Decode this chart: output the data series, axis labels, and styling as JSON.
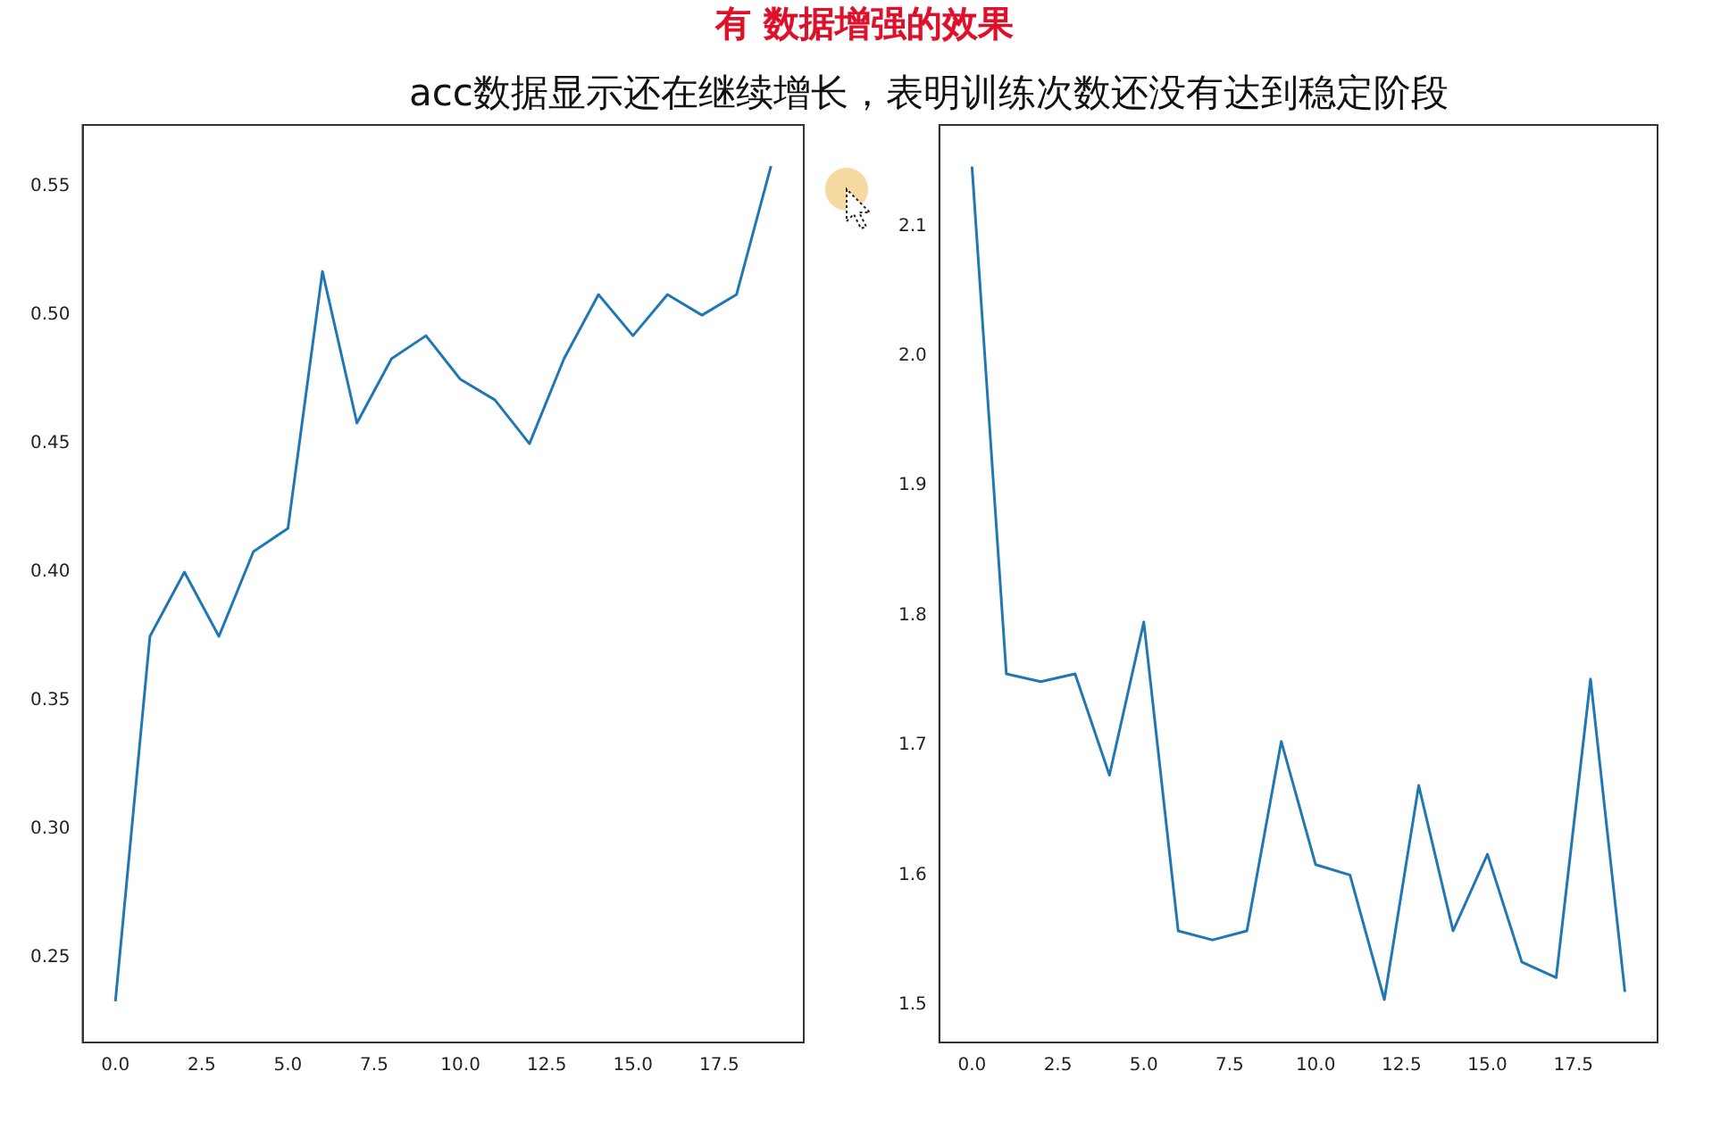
{
  "chart_data": [
    {
      "type": "line",
      "title": "有 数据增强的效果",
      "subtitle": "acc数据显示还在继续增长，表明训练次数还没有达到稳定阶段",
      "x": [
        0,
        1,
        2,
        3,
        4,
        5,
        6,
        7,
        8,
        9,
        10,
        11,
        12,
        13,
        14,
        15,
        16,
        17,
        18,
        19
      ],
      "series": [
        {
          "color": "#1f77b4",
          "values": [
            0.233,
            0.375,
            0.4,
            0.375,
            0.408,
            0.417,
            0.517,
            0.458,
            0.483,
            0.492,
            0.475,
            0.467,
            0.45,
            0.483,
            0.508,
            0.492,
            0.508,
            0.5,
            0.508,
            0.558
          ]
        }
      ],
      "xlim": [
        -0.95,
        19.95
      ],
      "xticks": [
        {
          "value": 0,
          "label": "0.0"
        },
        {
          "value": 2.5,
          "label": "2.5"
        },
        {
          "value": 5,
          "label": "5.0"
        },
        {
          "value": 7.5,
          "label": "7.5"
        },
        {
          "value": 10,
          "label": "10.0"
        },
        {
          "value": 12.5,
          "label": "12.5"
        },
        {
          "value": 15,
          "label": "15.0"
        },
        {
          "value": 17.5,
          "label": "17.5"
        }
      ],
      "ylim": [
        0.217,
        0.574
      ],
      "yticks": [
        0.25,
        {
          "value": 0.3,
          "label": "0.30"
        },
        0.35,
        {
          "value": 0.4,
          "label": "0.40"
        },
        0.45,
        {
          "value": 0.5,
          "label": "0.50"
        },
        0.55
      ],
      "grid": false,
      "legend": false,
      "marker": "none",
      "line_style": "solid"
    },
    {
      "type": "line",
      "x": [
        0,
        1,
        2,
        3,
        4,
        5,
        6,
        7,
        8,
        9,
        10,
        11,
        12,
        13,
        14,
        15,
        16,
        17,
        18,
        19
      ],
      "series": [
        {
          "color": "#1f77b4",
          "values": [
            2.146,
            1.755,
            1.749,
            1.755,
            1.677,
            1.795,
            1.557,
            1.55,
            1.557,
            1.703,
            1.608,
            1.6,
            1.504,
            1.669,
            1.557,
            1.616,
            1.533,
            1.521,
            1.751,
            1.51
          ]
        }
      ],
      "xlim": [
        -0.95,
        19.95
      ],
      "xticks": [
        {
          "value": 0,
          "label": "0.0"
        },
        {
          "value": 2.5,
          "label": "2.5"
        },
        {
          "value": 5,
          "label": "5.0"
        },
        {
          "value": 7.5,
          "label": "7.5"
        },
        {
          "value": 10,
          "label": "10.0"
        },
        {
          "value": 12.5,
          "label": "12.5"
        },
        {
          "value": 15,
          "label": "15.0"
        },
        {
          "value": 17.5,
          "label": "17.5"
        }
      ],
      "ylim": [
        1.471,
        2.178
      ],
      "yticks": [
        1.5,
        1.6,
        1.7,
        1.8,
        1.9,
        {
          "value": 2.0,
          "label": "2.0"
        },
        2.1
      ],
      "grid": false,
      "legend": false,
      "marker": "none",
      "line_style": "solid"
    }
  ]
}
